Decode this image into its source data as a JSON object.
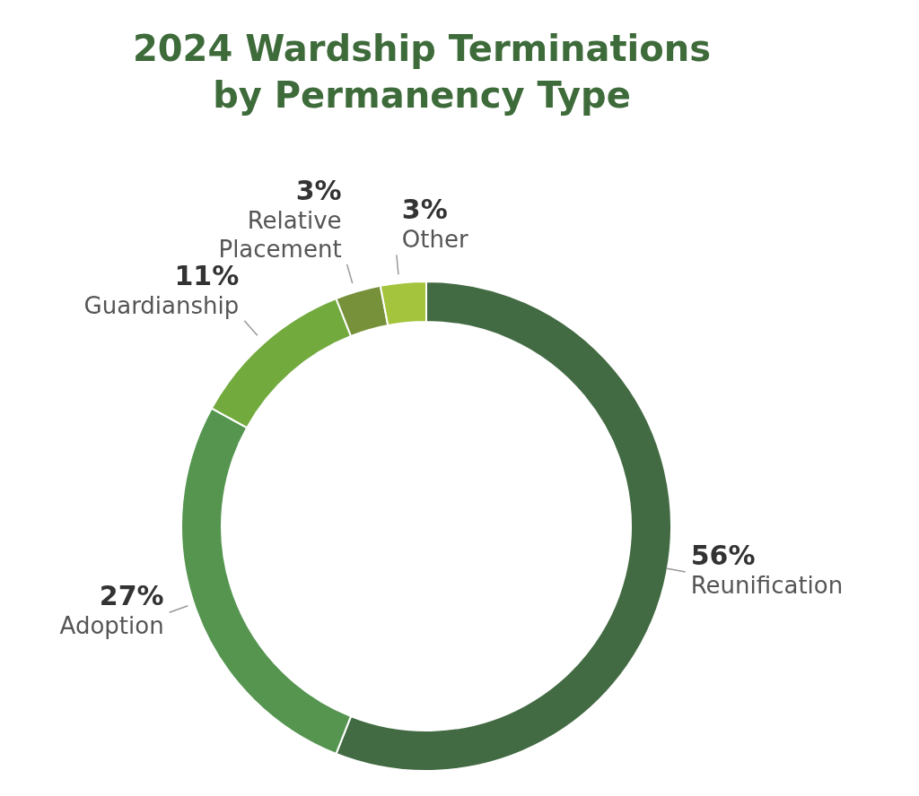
{
  "chart_data": {
    "type": "donut",
    "title": "2024 Wardship Terminations by Permanency Type",
    "categories": [
      "Reunification",
      "Adoption",
      "Guardianship",
      "Relative Placement",
      "Other"
    ],
    "values": [
      56,
      27,
      11,
      3,
      3
    ],
    "colors": [
      "#436b43",
      "#559550",
      "#72aa3e",
      "#77913a",
      "#a5c43d"
    ],
    "value_labels": [
      "56%",
      "27%",
      "11%",
      "3%",
      "3%"
    ]
  }
}
